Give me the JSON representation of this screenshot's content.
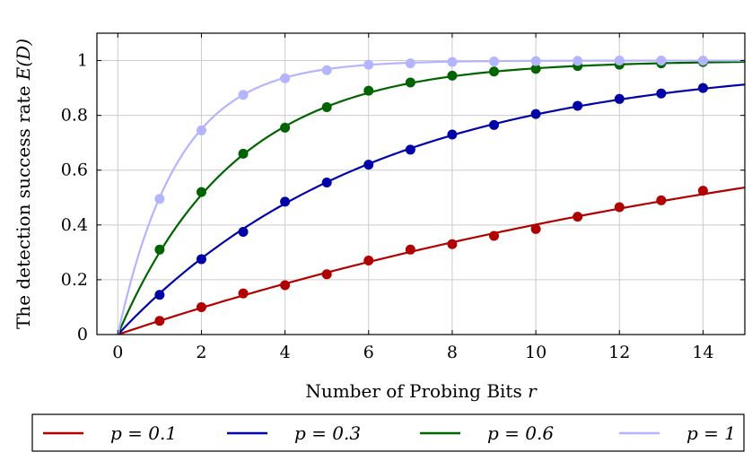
{
  "chart_data": {
    "type": "line",
    "title": "",
    "xlabel": "Number of Probing Bits",
    "xlabel_symbol": "r",
    "ylabel": "The detection success rate",
    "ylabel_symbol": "E(D)",
    "xlim": [
      -0.5,
      15
    ],
    "ylim": [
      0,
      1.1
    ],
    "xticks": [
      0,
      2,
      4,
      6,
      8,
      10,
      12,
      14
    ],
    "yticks": [
      0,
      0.2,
      0.4,
      0.6,
      0.8,
      1
    ],
    "ytick_labels": [
      "0",
      "0.2",
      "0.4",
      "0.6",
      "0.8",
      "1"
    ],
    "grid": true,
    "legend_position": "bottom",
    "series": [
      {
        "name": "p = 0.1",
        "p": 0.1,
        "color": "#b00000",
        "points_x": [
          1,
          2,
          3,
          4,
          5,
          6,
          7,
          8,
          9,
          10,
          11,
          12,
          13,
          14
        ],
        "points_y": [
          0.05,
          0.1,
          0.15,
          0.18,
          0.22,
          0.27,
          0.31,
          0.33,
          0.36,
          0.385,
          0.43,
          0.465,
          0.49,
          0.525
        ]
      },
      {
        "name": "p = 0.3",
        "p": 0.3,
        "color": "#0000a8",
        "points_x": [
          1,
          2,
          3,
          4,
          5,
          6,
          7,
          8,
          9,
          10,
          11,
          12,
          13,
          14
        ],
        "points_y": [
          0.145,
          0.275,
          0.375,
          0.485,
          0.555,
          0.62,
          0.675,
          0.73,
          0.765,
          0.805,
          0.835,
          0.86,
          0.88,
          0.9
        ]
      },
      {
        "name": "p = 0.6",
        "p": 0.6,
        "color": "#006400",
        "points_x": [
          1,
          2,
          3,
          4,
          5,
          6,
          7,
          8,
          9,
          10,
          11,
          12,
          13,
          14
        ],
        "points_y": [
          0.31,
          0.52,
          0.66,
          0.755,
          0.83,
          0.89,
          0.92,
          0.945,
          0.96,
          0.97,
          0.98,
          0.985,
          0.99,
          0.995
        ]
      },
      {
        "name": "p = 1",
        "p": 1,
        "color": "#b4b4ff",
        "points_x": [
          1,
          2,
          3,
          4,
          5,
          6,
          7,
          8,
          9,
          10,
          11,
          12,
          13,
          14
        ],
        "points_y": [
          0.495,
          0.745,
          0.875,
          0.935,
          0.965,
          0.985,
          0.99,
          0.995,
          0.997,
          0.998,
          0.999,
          1.0,
          1.0,
          1.0
        ]
      }
    ]
  }
}
